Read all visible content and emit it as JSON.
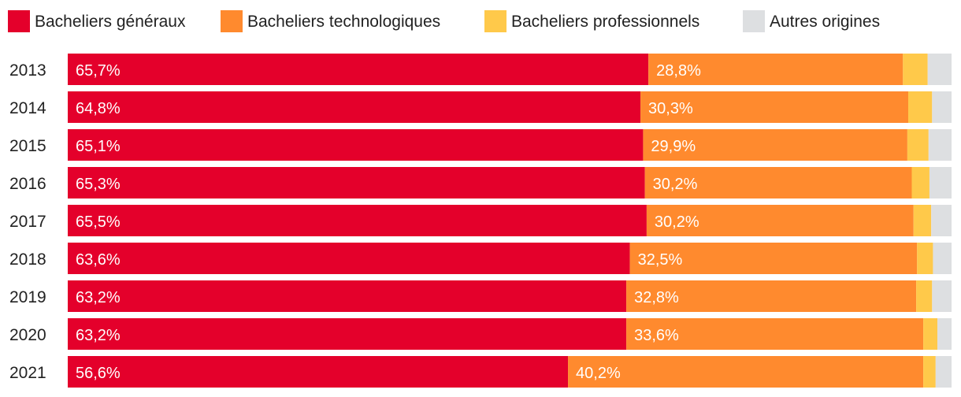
{
  "chart_data": {
    "type": "bar",
    "orientation": "horizontal",
    "stacked": true,
    "title": "",
    "xlabel": "",
    "ylabel": "",
    "xlim": [
      0,
      100
    ],
    "legend_position": "top",
    "categories": [
      "2013",
      "2014",
      "2015",
      "2016",
      "2017",
      "2018",
      "2019",
      "2020",
      "2021"
    ],
    "series": [
      {
        "name": "Bacheliers généraux",
        "color": "#e4002b",
        "values": [
          65.7,
          64.8,
          65.1,
          65.3,
          65.5,
          63.6,
          63.2,
          63.2,
          56.6
        ],
        "labels": [
          "65,7%",
          "64,8%",
          "65,1%",
          "65,3%",
          "65,5%",
          "63,6%",
          "63,2%",
          "63,2%",
          "56,6%"
        ]
      },
      {
        "name": "Bacheliers technologiques",
        "color": "#ff8a2e",
        "values": [
          28.8,
          30.3,
          29.9,
          30.2,
          30.2,
          32.5,
          32.8,
          33.6,
          40.2
        ],
        "labels": [
          "28,8%",
          "30,3%",
          "29,9%",
          "30,2%",
          "30,2%",
          "32,5%",
          "32,8%",
          "33,6%",
          "40,2%"
        ]
      },
      {
        "name": "Bacheliers professionnels",
        "color": "#ffc94a",
        "values": [
          2.8,
          2.7,
          2.4,
          2.0,
          2.0,
          1.8,
          1.8,
          1.6,
          1.4
        ],
        "labels": null
      },
      {
        "name": "Autres origines",
        "color": "#dddfe1",
        "values": [
          2.7,
          2.2,
          2.6,
          2.5,
          2.3,
          2.1,
          2.2,
          1.6,
          1.8
        ],
        "labels": null
      }
    ]
  }
}
